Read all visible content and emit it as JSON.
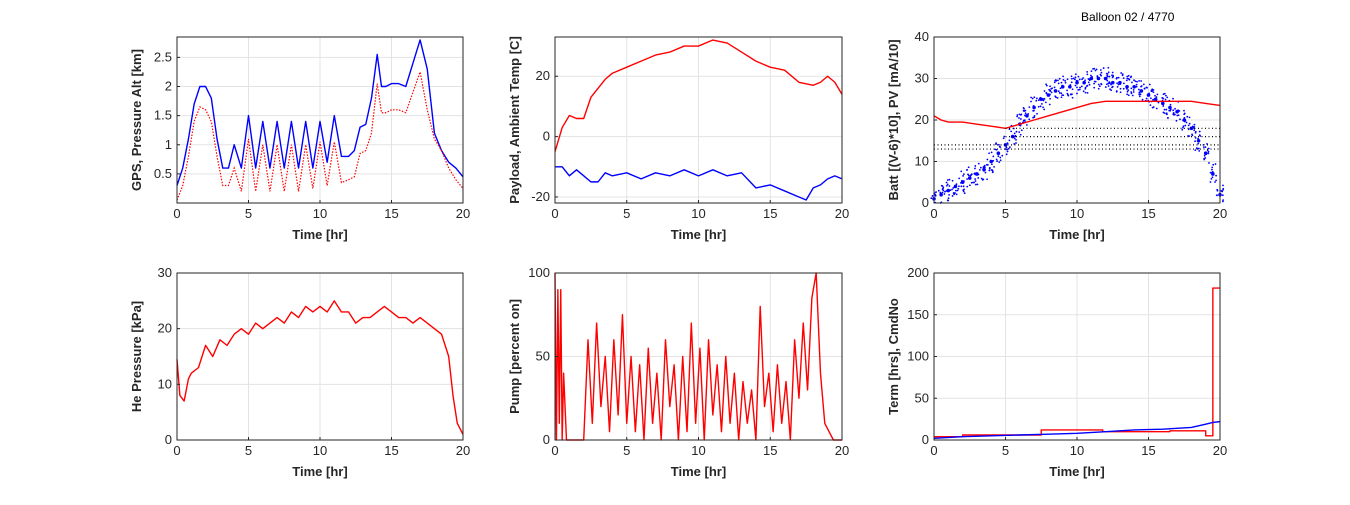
{
  "figure": {
    "suptitle": "Balloon 02 / 4770"
  },
  "chart_data": [
    {
      "type": "line",
      "xlabel": "Time [hr]",
      "ylabel": "GPS, Pressure Alt [km]",
      "xlim": [
        0,
        20
      ],
      "ylim": [
        0,
        2.85
      ],
      "xticks": [
        "0",
        "5",
        "10",
        "15",
        "20"
      ],
      "yticks": [
        "0.5",
        "1",
        "1.5",
        "2",
        "2.5"
      ],
      "ytick_values": [
        0.5,
        1,
        1.5,
        2,
        2.5
      ],
      "grid": true,
      "series": [
        {
          "style": "line",
          "color": "#0000ff",
          "x": [
            0,
            0.4,
            0.8,
            1.2,
            1.6,
            2.0,
            2.4,
            2.8,
            3.2,
            3.6,
            4.0,
            4.5,
            5.0,
            5.5,
            6.0,
            6.5,
            7.0,
            7.5,
            8.0,
            8.5,
            9.0,
            9.5,
            10.0,
            10.5,
            11.0,
            11.5,
            12.0,
            12.4,
            12.8,
            13.2,
            13.6,
            14.0,
            14.3,
            14.6,
            15.0,
            15.5,
            16.0,
            16.5,
            17.0,
            17.5,
            18.0,
            18.5,
            19.0,
            19.5,
            20.0
          ],
          "y": [
            0.3,
            0.6,
            1.1,
            1.7,
            2.0,
            2.0,
            1.8,
            1.1,
            0.6,
            0.6,
            1.0,
            0.6,
            1.5,
            0.6,
            1.4,
            0.6,
            1.4,
            0.6,
            1.4,
            0.6,
            1.4,
            0.6,
            1.4,
            0.7,
            1.5,
            0.8,
            0.8,
            0.9,
            1.3,
            1.35,
            1.8,
            2.55,
            2.0,
            2.0,
            2.05,
            2.05,
            2.0,
            2.4,
            2.8,
            2.3,
            1.2,
            0.9,
            0.7,
            0.6,
            0.45
          ]
        },
        {
          "style": "dots",
          "color": "#ff0000",
          "x": [
            0,
            0.4,
            0.8,
            1.2,
            1.6,
            2.0,
            2.4,
            2.8,
            3.2,
            3.6,
            4.0,
            4.5,
            5.0,
            5.5,
            6.0,
            6.5,
            7.0,
            7.5,
            8.0,
            8.5,
            9.0,
            9.5,
            10.0,
            10.5,
            11.0,
            11.5,
            12.0,
            12.4,
            12.8,
            13.2,
            13.6,
            14.0,
            14.3,
            14.6,
            15.0,
            15.5,
            16.0,
            16.5,
            17.0,
            17.5,
            18.0,
            18.5,
            19.0,
            19.5,
            20.0
          ],
          "y": [
            0.05,
            0.3,
            0.8,
            1.4,
            1.65,
            1.6,
            1.4,
            0.8,
            0.3,
            0.3,
            0.6,
            0.2,
            1.1,
            0.2,
            1.0,
            0.2,
            1.0,
            0.2,
            1.0,
            0.2,
            1.0,
            0.25,
            1.05,
            0.3,
            1.05,
            0.35,
            0.4,
            0.45,
            0.85,
            0.9,
            1.2,
            2.05,
            1.55,
            1.55,
            1.6,
            1.6,
            1.55,
            1.9,
            2.25,
            1.6,
            1.1,
            0.9,
            0.6,
            0.4,
            0.25
          ]
        }
      ]
    },
    {
      "type": "line",
      "xlabel": "Time [hr]",
      "ylabel": "Payload, Ambient Temp [C]",
      "xlim": [
        0,
        20
      ],
      "ylim": [
        -22,
        33
      ],
      "xticks": [
        "0",
        "5",
        "10",
        "15",
        "20"
      ],
      "yticks": [
        "-20",
        "0",
        "20"
      ],
      "ytick_values": [
        -20,
        0,
        20
      ],
      "grid": true,
      "series": [
        {
          "style": "line",
          "color": "#ff0000",
          "x": [
            0,
            0.5,
            1.0,
            1.5,
            2.0,
            2.5,
            3.0,
            3.5,
            4.0,
            5.0,
            6.0,
            7.0,
            8.0,
            9.0,
            10.0,
            11.0,
            12.0,
            13.0,
            14.0,
            15.0,
            16.0,
            17.0,
            18.0,
            18.5,
            19.0,
            19.5,
            20.0
          ],
          "y": [
            -5,
            3,
            7,
            6,
            6,
            13,
            16,
            19,
            21,
            23,
            25,
            27,
            28,
            30,
            30,
            32,
            31,
            28,
            25,
            23,
            22,
            18,
            17,
            18,
            20,
            18,
            14
          ]
        },
        {
          "style": "line",
          "color": "#0000ff",
          "x": [
            0,
            0.5,
            1.0,
            1.5,
            2.0,
            2.5,
            3.0,
            3.5,
            4.0,
            5.0,
            6.0,
            7.0,
            8.0,
            9.0,
            10.0,
            11.0,
            12.0,
            13.0,
            14.0,
            15.0,
            16.0,
            17.0,
            17.5,
            18.0,
            18.5,
            19.0,
            19.5,
            20.0
          ],
          "y": [
            -10,
            -10,
            -13,
            -11,
            -13,
            -15,
            -15,
            -12,
            -13,
            -12,
            -14,
            -12,
            -13,
            -11,
            -13,
            -11,
            -13,
            -12,
            -17,
            -16,
            -18,
            -20,
            -21,
            -17,
            -16,
            -14,
            -13,
            -14
          ]
        }
      ]
    },
    {
      "type": "scatter",
      "xlabel": "Time [hr]",
      "ylabel": "Batt [(V-6)*10], PV [mA/10]",
      "xlim": [
        0,
        20
      ],
      "ylim": [
        0,
        40
      ],
      "xticks": [
        "0",
        "5",
        "10",
        "15",
        "20"
      ],
      "yticks": [
        "0",
        "10",
        "20",
        "30",
        "40"
      ],
      "ytick_values": [
        0,
        10,
        20,
        30,
        40
      ],
      "grid": true,
      "series": [
        {
          "style": "scatter",
          "color": "#0000ff",
          "x": [
            0,
            0.5,
            1.0,
            1.5,
            2.0,
            2.5,
            3.0,
            3.5,
            4.0,
            4.5,
            5.0,
            5.5,
            6.0,
            6.5,
            7.0,
            7.5,
            8.0,
            8.5,
            9.0,
            9.5,
            10.0,
            10.5,
            11.0,
            11.5,
            12.0,
            12.5,
            13.0,
            13.5,
            14.0,
            14.5,
            15.0,
            15.5,
            16.0,
            16.5,
            17.0,
            17.5,
            18.0,
            18.5,
            19.0,
            19.5,
            20.0
          ],
          "y": [
            1,
            2,
            3,
            4,
            5,
            6,
            7,
            8,
            10,
            12,
            14,
            16,
            19,
            21,
            23,
            25,
            26,
            27,
            28,
            28,
            29,
            29,
            30,
            30,
            30,
            29,
            29,
            28,
            28,
            27,
            26,
            25,
            24,
            23,
            22,
            20,
            18,
            15,
            12,
            7,
            2
          ]
        },
        {
          "style": "line",
          "color": "#ff0000",
          "x": [
            0,
            0.5,
            1.0,
            2.0,
            3.0,
            4.0,
            5.0,
            6.0,
            7.0,
            8.0,
            9.0,
            10.0,
            11.0,
            12.0,
            13.0,
            14.0,
            15.0,
            16.0,
            17.0,
            18.0,
            19.0,
            20.0
          ],
          "y": [
            21,
            20,
            19.5,
            19.5,
            19,
            18.5,
            18,
            19,
            20,
            21,
            22,
            23,
            24,
            24.5,
            24.5,
            24.5,
            24.5,
            24.5,
            24.5,
            24.5,
            24,
            23.5
          ]
        },
        {
          "style": "dotted",
          "color": "#000000",
          "x": [
            5,
            20
          ],
          "y": [
            18,
            18
          ]
        },
        {
          "style": "dotted",
          "color": "#000000",
          "x": [
            5,
            20
          ],
          "y": [
            16,
            16
          ]
        },
        {
          "style": "dotted",
          "color": "#000000",
          "x": [
            0,
            20
          ],
          "y": [
            14,
            14
          ]
        },
        {
          "style": "dotted",
          "color": "#000000",
          "x": [
            0,
            20
          ],
          "y": [
            13,
            13
          ]
        }
      ]
    },
    {
      "type": "line",
      "xlabel": "Time [hr]",
      "ylabel": "He Pressure [kPa]",
      "xlim": [
        0,
        20
      ],
      "ylim": [
        0,
        30
      ],
      "xticks": [
        "0",
        "5",
        "10",
        "15",
        "20"
      ],
      "yticks": [
        "0",
        "10",
        "20",
        "30"
      ],
      "ytick_values": [
        0,
        10,
        20,
        30
      ],
      "grid": true,
      "series": [
        {
          "style": "line",
          "color": "#ff0000",
          "x": [
            0,
            0.2,
            0.5,
            0.8,
            1.0,
            1.5,
            2.0,
            2.5,
            3.0,
            3.5,
            4.0,
            4.5,
            5.0,
            5.5,
            6.0,
            6.5,
            7.0,
            7.5,
            8.0,
            8.5,
            9.0,
            9.5,
            10.0,
            10.5,
            11.0,
            11.5,
            12.0,
            12.5,
            13.0,
            13.5,
            14.0,
            14.5,
            15.0,
            15.5,
            16.0,
            16.5,
            17.0,
            17.5,
            18.0,
            18.5,
            19.0,
            19.3,
            19.6,
            20.0
          ],
          "y": [
            14.5,
            8,
            7,
            11,
            12,
            13,
            17,
            15,
            18,
            17,
            19,
            20,
            19,
            21,
            20,
            21,
            22,
            21,
            23,
            22,
            24,
            23,
            24,
            23,
            25,
            23,
            23,
            21,
            22,
            22,
            23,
            24,
            23,
            22,
            22,
            21,
            22,
            21,
            20,
            19,
            15,
            8,
            3,
            1
          ]
        }
      ]
    },
    {
      "type": "line",
      "xlabel": "Time [hr]",
      "ylabel": "Pump [percent on]",
      "xlim": [
        0,
        20
      ],
      "ylim": [
        0,
        100
      ],
      "xticks": [
        "0",
        "5",
        "10",
        "15",
        "20"
      ],
      "yticks": [
        "0",
        "50",
        "100"
      ],
      "ytick_values": [
        0,
        50,
        100
      ],
      "grid": true,
      "series": [
        {
          "style": "line",
          "color": "#ff0000",
          "x": [
            0,
            0.1,
            0.2,
            0.3,
            0.4,
            0.5,
            0.6,
            0.8,
            1.0,
            1.5,
            2.0,
            2.3,
            2.6,
            2.9,
            3.2,
            3.5,
            3.8,
            4.1,
            4.4,
            4.7,
            5.0,
            5.3,
            5.6,
            5.9,
            6.2,
            6.5,
            6.8,
            7.1,
            7.4,
            7.7,
            8.0,
            8.3,
            8.6,
            8.9,
            9.2,
            9.5,
            9.8,
            10.1,
            10.4,
            10.7,
            11.0,
            11.3,
            11.6,
            11.9,
            12.2,
            12.5,
            12.8,
            13.1,
            13.4,
            13.7,
            14.0,
            14.3,
            14.6,
            14.9,
            15.2,
            15.5,
            15.8,
            16.1,
            16.4,
            16.7,
            17.0,
            17.3,
            17.6,
            17.9,
            18.2,
            18.5,
            18.8,
            19.1,
            19.4,
            19.7,
            20.0
          ],
          "y": [
            100,
            0,
            90,
            10,
            90,
            0,
            40,
            0,
            0,
            0,
            0,
            60,
            10,
            70,
            20,
            50,
            5,
            60,
            15,
            75,
            10,
            50,
            5,
            45,
            0,
            55,
            10,
            40,
            0,
            60,
            20,
            45,
            0,
            50,
            5,
            70,
            10,
            55,
            0,
            60,
            15,
            45,
            5,
            50,
            10,
            40,
            0,
            35,
            10,
            30,
            0,
            80,
            20,
            40,
            5,
            45,
            10,
            35,
            0,
            60,
            25,
            70,
            30,
            85,
            100,
            40,
            10,
            5,
            0,
            0,
            0
          ]
        }
      ]
    },
    {
      "type": "line",
      "xlabel": "Time [hr]",
      "ylabel": "Term [hrs], CmdNo",
      "xlim": [
        0,
        20
      ],
      "ylim": [
        0,
        200
      ],
      "xticks": [
        "0",
        "5",
        "10",
        "15",
        "20"
      ],
      "yticks": [
        "0",
        "50",
        "100",
        "150",
        "200"
      ],
      "ytick_values": [
        0,
        50,
        100,
        150,
        200
      ],
      "grid": true,
      "series": [
        {
          "style": "step",
          "color": "#ff0000",
          "x": [
            0,
            2.0,
            2.0,
            7.5,
            7.5,
            11.8,
            11.8,
            16.5,
            16.5,
            19.0,
            19.0,
            19.5,
            19.5,
            20.0
          ],
          "y": [
            4,
            4,
            6,
            6,
            12,
            12,
            10,
            10,
            11,
            11,
            5,
            5,
            182,
            182
          ]
        },
        {
          "style": "line",
          "color": "#0000ff",
          "x": [
            0,
            2,
            4,
            6,
            8,
            10,
            12,
            14,
            16,
            18,
            19,
            19.5,
            20
          ],
          "y": [
            2,
            4,
            5,
            6,
            7,
            8,
            10,
            12,
            13,
            15,
            19,
            21,
            22
          ]
        }
      ]
    }
  ]
}
